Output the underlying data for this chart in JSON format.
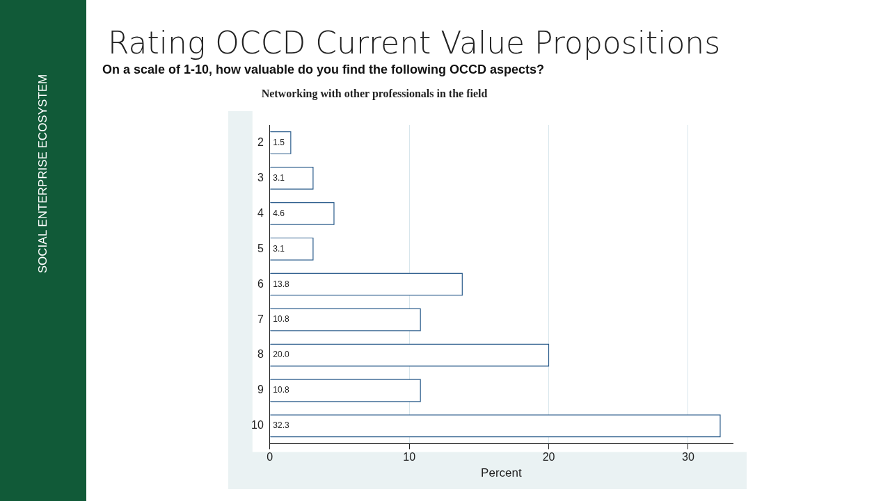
{
  "chart_data": {
    "type": "bar",
    "orientation": "horizontal",
    "title": "Rating OCCD Current Value Propositions",
    "subtitle": "On a scale of 1-10, how valuable do you find the following OCCD aspects?",
    "annotations": [
      "Networking with other professionals in the field",
      "SOCIAL ENTERPRISE ECOSYSTEM"
    ],
    "xlabel": "Percent",
    "categories": [
      "2",
      "3",
      "4",
      "5",
      "6",
      "7",
      "8",
      "9",
      "10"
    ],
    "values": [
      1.5,
      3.1,
      4.6,
      3.1,
      13.8,
      10.8,
      20.0,
      10.8,
      32.3
    ],
    "color": "#ffffff",
    "value_labels": [
      "1.5",
      "3.1",
      "4.6",
      "3.1",
      "13.8",
      "10.8",
      "20.0",
      "10.8",
      "32.3"
    ],
    "xlim": [
      0,
      33.2
    ],
    "xticks": [
      0,
      10,
      20,
      30
    ],
    "grid": "x",
    "legend": false
  }
}
